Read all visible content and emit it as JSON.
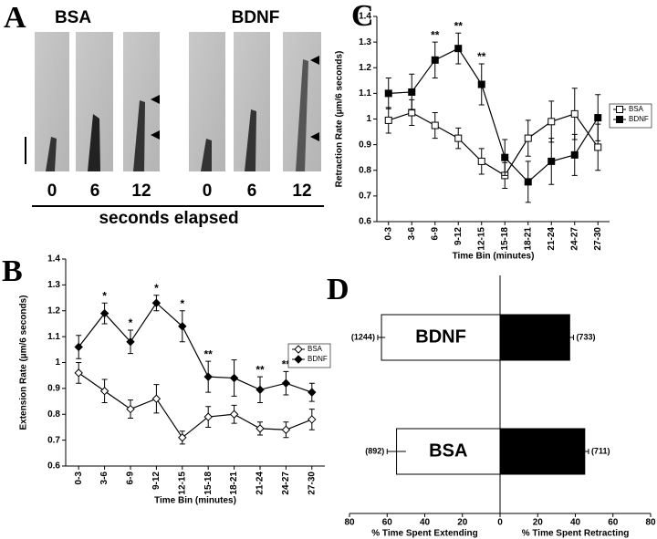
{
  "panel_a": {
    "panel_label": "A",
    "groups": [
      "BSA",
      "BDNF"
    ],
    "times": [
      "0",
      "6",
      "12",
      "0",
      "6",
      "12"
    ],
    "xlabel": "seconds elapsed"
  },
  "chart_data": [
    {
      "type": "line",
      "panel_label": "B",
      "ylabel": "Extension Rate (µm/6 seconds)",
      "xlabel": "Time Bin (minutes)",
      "categories": [
        "0-3",
        "3-6",
        "6-9",
        "9-12",
        "12-15",
        "15-18",
        "18-21",
        "21-24",
        "24-27",
        "27-30"
      ],
      "ylim": [
        0.6,
        1.4
      ],
      "yticks": [
        0.6,
        0.7,
        0.8,
        0.9,
        1,
        1.1,
        1.2,
        1.3,
        1.4
      ],
      "legend": "right",
      "series": [
        {
          "name": "BSA",
          "color": "#000000",
          "marker": "open-diamond",
          "values": [
            0.96,
            0.89,
            0.82,
            0.86,
            0.71,
            0.79,
            0.8,
            0.745,
            0.74,
            0.78
          ],
          "errors": [
            0.04,
            0.045,
            0.035,
            0.055,
            0.025,
            0.04,
            0.035,
            0.025,
            0.03,
            0.04
          ]
        },
        {
          "name": "BDNF",
          "color": "#000000",
          "marker": "filled-diamond",
          "values": [
            1.06,
            1.19,
            1.08,
            1.23,
            1.14,
            0.945,
            0.94,
            0.895,
            0.92,
            0.885
          ],
          "errors": [
            0.045,
            0.04,
            0.045,
            0.03,
            0.06,
            0.06,
            0.07,
            0.05,
            0.045,
            0.035
          ]
        }
      ],
      "annotations": [
        null,
        "*",
        "*",
        "*",
        "*",
        "**",
        null,
        "**",
        "**",
        null
      ]
    },
    {
      "type": "line",
      "panel_label": "C",
      "ylabel": "Retraction Rate (µm/6 seconds)",
      "xlabel": "Time Bin (minutes)",
      "categories": [
        "0-3",
        "3-6",
        "6-9",
        "9-12",
        "12-15",
        "15-18",
        "18-21",
        "21-24",
        "24-27",
        "27-30"
      ],
      "ylim": [
        0.6,
        1.4
      ],
      "yticks": [
        0.6,
        0.7,
        0.8,
        0.9,
        1,
        1.1,
        1.2,
        1.3,
        1.4
      ],
      "legend": "outside-right",
      "series": [
        {
          "name": "BSA",
          "color": "#000000",
          "marker": "open-square",
          "values": [
            0.995,
            1.025,
            0.975,
            0.925,
            0.835,
            0.78,
            0.925,
            0.99,
            1.02,
            0.89
          ],
          "errors": [
            0.05,
            0.05,
            0.05,
            0.04,
            0.05,
            0.05,
            0.07,
            0.08,
            0.1,
            0.09
          ]
        },
        {
          "name": "BDNF",
          "color": "#000000",
          "marker": "filled-square",
          "values": [
            1.1,
            1.105,
            1.23,
            1.275,
            1.135,
            0.85,
            0.755,
            0.835,
            0.86,
            1.005
          ],
          "errors": [
            0.06,
            0.07,
            0.07,
            0.06,
            0.08,
            0.07,
            0.08,
            0.09,
            0.08,
            0.09
          ]
        }
      ],
      "annotations": [
        null,
        null,
        "**",
        "**",
        "**",
        null,
        null,
        null,
        null,
        null
      ]
    },
    {
      "type": "diverging-bar",
      "panel_label": "D",
      "categories": [
        "BDNF",
        "BSA"
      ],
      "xlim": [
        -80,
        80
      ],
      "xticks": [
        {
          "value": -80,
          "label": "80"
        },
        {
          "value": -60,
          "label": "60"
        },
        {
          "value": -40,
          "label": "40"
        },
        {
          "value": -20,
          "label": "20"
        },
        0,
        20,
        40,
        60,
        80
      ],
      "series": [
        {
          "name": "% Time Spent Extending",
          "side": "left",
          "color": "#ffffff",
          "values": [
            63,
            55
          ],
          "errors": [
            2,
            5
          ],
          "n_labels": [
            "(1244)",
            "(892)"
          ]
        },
        {
          "name": "% Time Spent Retracting",
          "side": "right",
          "color": "#000000",
          "values": [
            37,
            45
          ],
          "errors": [
            2,
            2
          ],
          "n_labels": [
            "(733)",
            "(711)"
          ]
        }
      ]
    }
  ]
}
